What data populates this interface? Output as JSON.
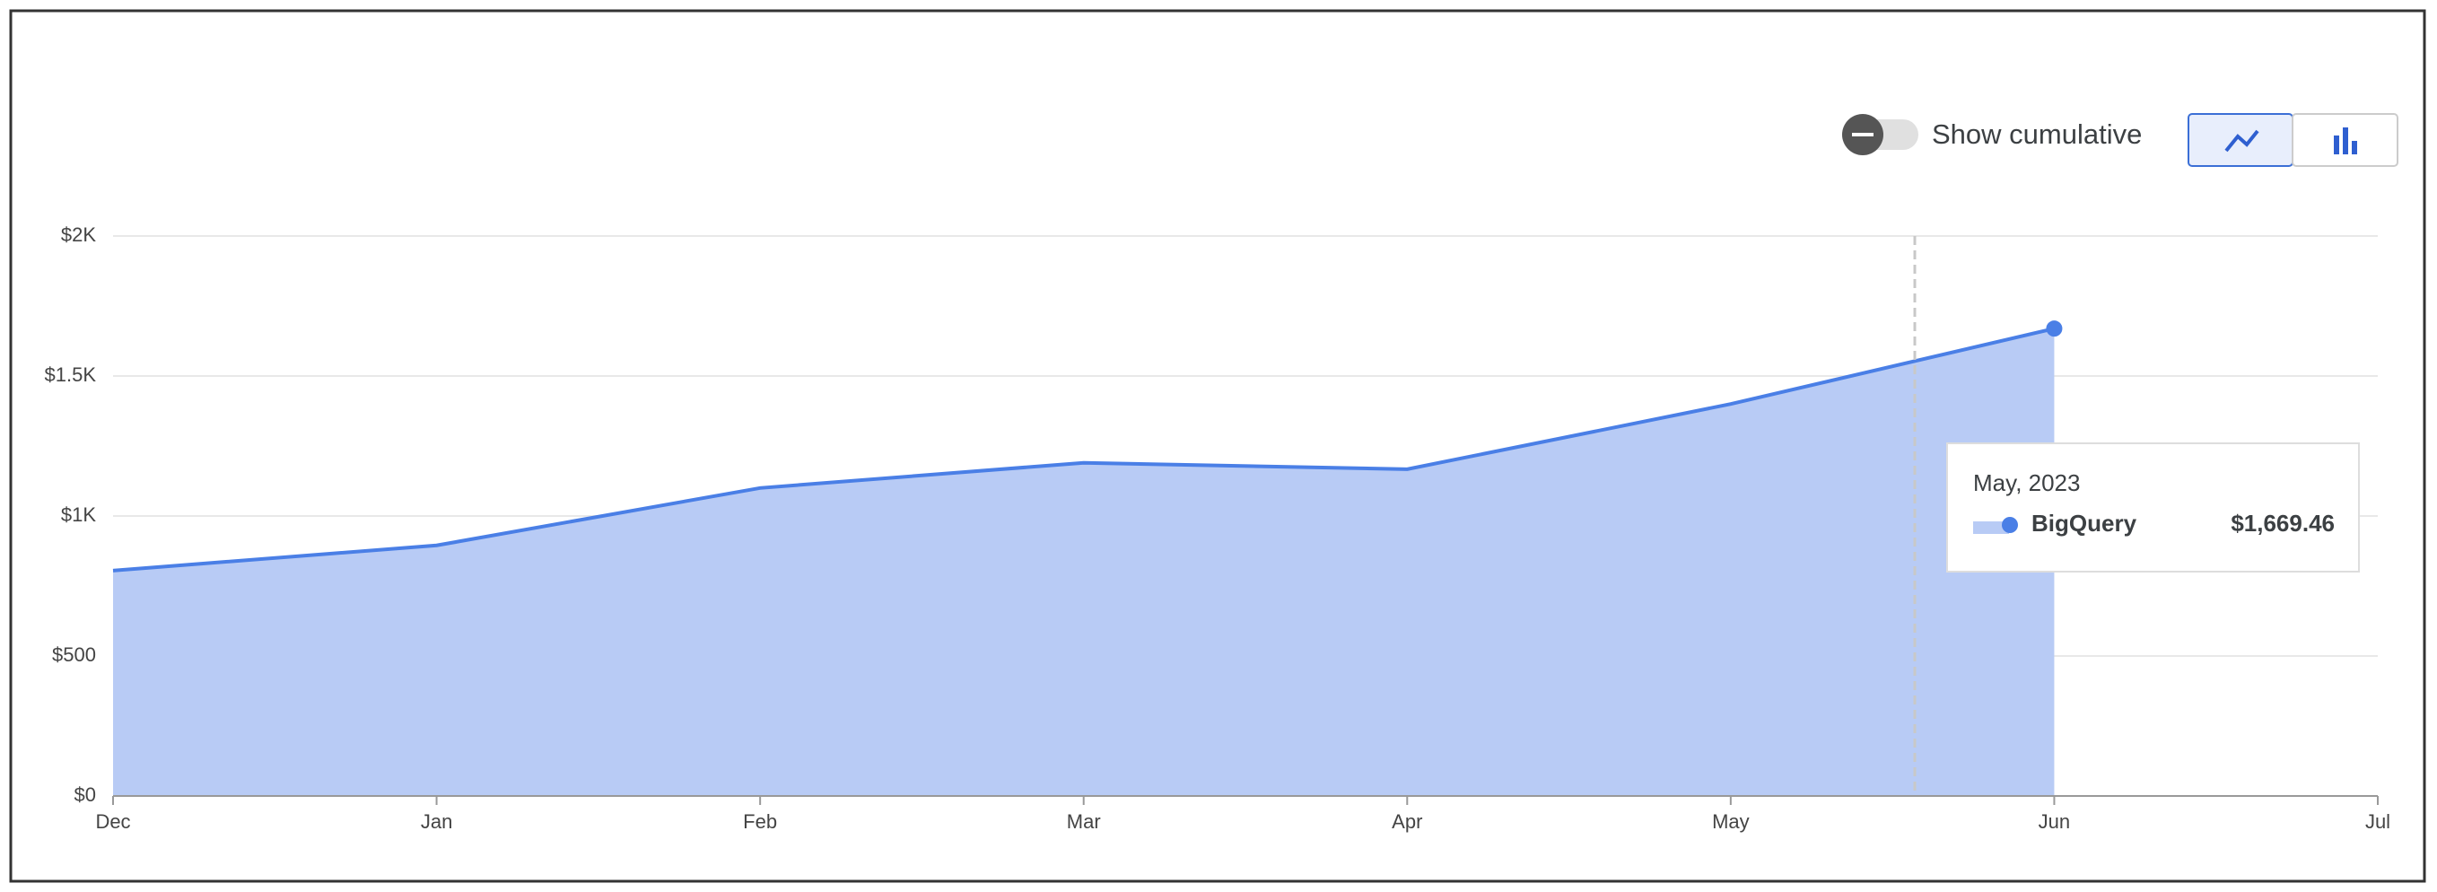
{
  "chart_data": {
    "type": "area",
    "controls": {
      "cumulative_label": "Show cumulative"
    },
    "categories": [
      "Dec",
      "Jan",
      "Feb",
      "Mar",
      "Apr",
      "May",
      "Jun",
      "Jul"
    ],
    "series": [
      {
        "name": "BigQuery",
        "color": "#4a7fe6",
        "fill": "#b8cbf5",
        "values": [
          805,
          895,
          1100,
          1190,
          1167,
          1400,
          1669.46,
          null
        ],
        "value_labels": [
          null,
          null,
          null,
          null,
          null,
          null,
          "$1,669.46",
          null
        ]
      }
    ],
    "tooltip_title": "May, 2023",
    "ylim": [
      0,
      2000
    ],
    "yticks": [
      {
        "value": 0,
        "label": "$0"
      },
      {
        "value": 500,
        "label": "$500"
      },
      {
        "value": 1000,
        "label": "$1K"
      },
      {
        "value": 1500,
        "label": "$1.5K"
      },
      {
        "value": 2000,
        "label": "$2K"
      }
    ],
    "grid": true
  }
}
